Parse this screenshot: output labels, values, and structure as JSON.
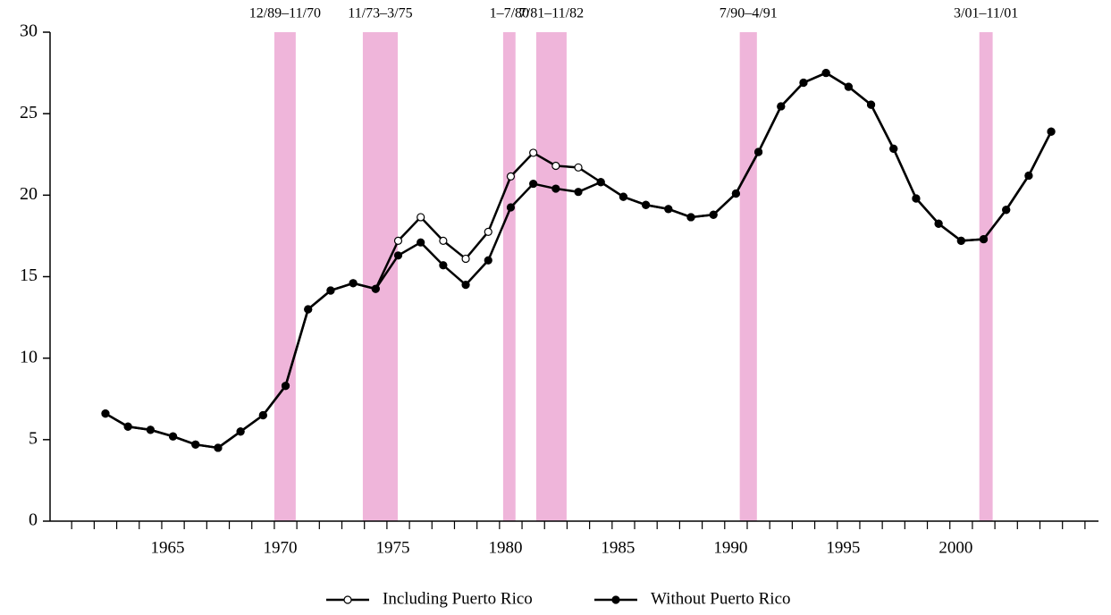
{
  "chart_data": {
    "type": "line",
    "x": [
      1962,
      1963,
      1964,
      1965,
      1966,
      1967,
      1968,
      1969,
      1970,
      1971,
      1972,
      1973,
      1974,
      1975,
      1976,
      1977,
      1978,
      1979,
      1980,
      1981,
      1982,
      1983,
      1984,
      1985,
      1986,
      1987,
      1988,
      1989,
      1990,
      1991,
      1992,
      1993,
      1994,
      1995,
      1996,
      1997,
      1998,
      1999,
      2000,
      2001,
      2002,
      2003,
      2004
    ],
    "series": [
      {
        "name": "Including Puerto Rico",
        "color": "#000000",
        "marker_fill": "#ffffff",
        "values": [
          6.6,
          5.8,
          5.6,
          5.2,
          4.7,
          4.5,
          5.5,
          6.5,
          8.3,
          13.0,
          14.15,
          14.6,
          14.25,
          17.2,
          18.65,
          17.2,
          16.1,
          17.75,
          21.15,
          22.6,
          21.8,
          21.7,
          20.8,
          19.9,
          19.4,
          19.15,
          18.65,
          18.8,
          20.1,
          22.65,
          25.45,
          26.9,
          27.5,
          26.65,
          25.55,
          22.85,
          19.8,
          18.25,
          17.2,
          17.3,
          19.1,
          21.2,
          23.9
        ]
      },
      {
        "name": "Without Puerto Rico",
        "color": "#000000",
        "marker_fill": "#000000",
        "values": [
          6.6,
          5.8,
          5.6,
          5.2,
          4.7,
          4.5,
          5.5,
          6.5,
          8.3,
          13.0,
          14.15,
          14.6,
          14.25,
          16.3,
          17.1,
          15.7,
          14.5,
          16.0,
          19.25,
          20.7,
          20.4,
          20.2,
          20.8,
          19.9,
          19.4,
          19.15,
          18.65,
          18.8,
          20.1,
          22.65,
          25.45,
          26.9,
          27.5,
          26.65,
          25.55,
          22.85,
          19.8,
          18.25,
          17.2,
          17.3,
          19.1,
          21.2,
          23.9
        ]
      }
    ],
    "recessions": [
      {
        "label": "12/89–11/70",
        "from": 1969.5,
        "to": 1970.45
      },
      {
        "label": "11/73–3/75",
        "from": 1973.43,
        "to": 1974.98
      },
      {
        "label": "1–7/80",
        "from": 1979.66,
        "to": 1980.21
      },
      {
        "label": "7/81–11/82",
        "from": 1981.13,
        "to": 1982.48
      },
      {
        "label": "7/90–4/91",
        "from": 1990.17,
        "to": 1990.93
      },
      {
        "label": "3/01–11/01",
        "from": 2000.81,
        "to": 2001.4
      }
    ],
    "recession_color": "#efb5da",
    "xlim": [
      1959.54,
      2006.1
    ],
    "xticks": [
      1965,
      1970,
      1975,
      1980,
      1985,
      1990,
      1995,
      2000
    ],
    "xminor_ticks": [
      1960.5,
      1961.5,
      1962.5,
      1963.5,
      1964.5,
      1965.5,
      1966.5,
      1967.5,
      1968.5,
      1969.5,
      1970.5,
      1971.5,
      1972.5,
      1973.5,
      1974.5,
      1975.5,
      1976.5,
      1977.5,
      1978.5,
      1979.5,
      1980.5,
      1981.5,
      1982.5,
      1983.5,
      1984.5,
      1985.5,
      1986.5,
      1987.5,
      1988.5,
      1989.5,
      1990.5,
      1991.5,
      1992.5,
      1993.5,
      1994.5,
      1995.5,
      1996.5,
      1997.5,
      1998.5,
      1999.5,
      2000.5,
      2001.5,
      2002.5,
      2003.5,
      2004.5,
      2005.5
    ],
    "ylim": [
      0,
      30
    ],
    "yticks": [
      0,
      5,
      10,
      15,
      20,
      25,
      30
    ],
    "legend": "bottom"
  }
}
